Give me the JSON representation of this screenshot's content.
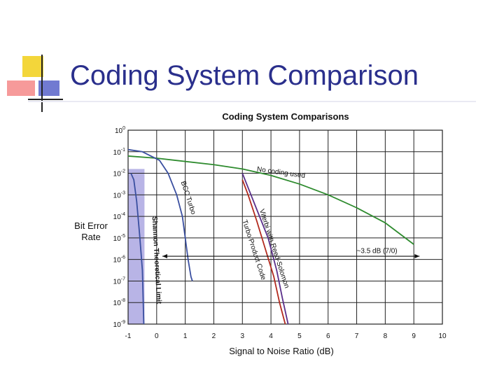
{
  "slide": {
    "title": "Coding System Comparison"
  },
  "chart_data": {
    "type": "line",
    "title": "Coding System Comparisons",
    "xlabel": "Signal to Noise Ratio (dB)",
    "ylabel": [
      "Bit Error",
      "Rate"
    ],
    "x_ticks": [
      -1,
      0,
      1,
      2,
      3,
      4,
      5,
      6,
      7,
      8,
      9,
      10
    ],
    "y_ticks": [
      0,
      -1,
      -2,
      -3,
      -4,
      -5,
      -6,
      -7,
      -8,
      -9
    ],
    "xlim": [
      -1,
      10
    ],
    "ylim_exponent": [
      -9,
      0
    ],
    "y_scale": "log",
    "grid": true,
    "series": [
      {
        "name": "No coding used",
        "color": "#2e8b2e",
        "x": [
          -1,
          0,
          2,
          3,
          4,
          5,
          6,
          7,
          8,
          9
        ],
        "y": [
          -1.2,
          -1.3,
          -1.6,
          -1.8,
          -2.1,
          -2.5,
          -3.0,
          -3.6,
          -4.3,
          -5.3
        ]
      },
      {
        "name": "BCC Turbo",
        "color": "#3a4fa0",
        "x": [
          -1,
          -0.5,
          0.1,
          0.4,
          0.7,
          0.9,
          1.0,
          1.1,
          1.2,
          1.25
        ],
        "y": [
          -0.9,
          -1.0,
          -1.4,
          -2.0,
          -3.0,
          -4.0,
          -5.0,
          -6.0,
          -6.8,
          -7.0
        ]
      },
      {
        "name": "Viterbi with Reed-Solomon",
        "color": "#5a2f8a",
        "x": [
          3.0,
          3.3,
          3.6,
          3.9,
          4.2,
          4.4,
          4.6
        ],
        "y": [
          -2.0,
          -3.0,
          -4.0,
          -5.0,
          -6.5,
          -7.8,
          -9.0
        ]
      },
      {
        "name": "Turbo Product Code",
        "color": "#b22a1e",
        "x": [
          3.0,
          3.2,
          3.5,
          3.8,
          4.1,
          4.3,
          4.5
        ],
        "y": [
          -2.3,
          -3.0,
          -4.2,
          -5.5,
          -6.8,
          -8.0,
          -9.0
        ]
      },
      {
        "name": "",
        "color": "#3a4fa0",
        "x": [
          -0.9,
          -0.8,
          -0.7,
          -0.6,
          -0.5,
          -0.45
        ],
        "y": [
          -2.0,
          -2.3,
          -3.3,
          -4.8,
          -6.5,
          -9.0
        ]
      }
    ],
    "shaded_region": {
      "label": "Shannon Theoretical Limit",
      "x_from": -1,
      "x_to": -0.5,
      "color": "#b8b4e6"
    },
    "annotations": [
      {
        "text": "No coding used",
        "x": 3.5,
        "y": -1.9,
        "angle": 8
      },
      {
        "text": "BCC Turbo",
        "x": 0.85,
        "y": -2.4,
        "angle": 72
      },
      {
        "text": "Viterbi with Reed-Solomon",
        "x": 3.6,
        "y": -3.7,
        "angle": 72
      },
      {
        "text": "Turbo Product Code",
        "x": 3.0,
        "y": -4.2,
        "angle": 72
      },
      {
        "text": "Shannon Theoretical Limit",
        "x": -0.15,
        "y": -4.0,
        "angle": 87
      },
      {
        "text": "~3.5 dB (7/0)",
        "x": 7.0,
        "y": -5.7,
        "angle": 0
      }
    ],
    "arrow": {
      "x_from": 0.2,
      "x_to": 9.2,
      "y": -5.85
    }
  }
}
